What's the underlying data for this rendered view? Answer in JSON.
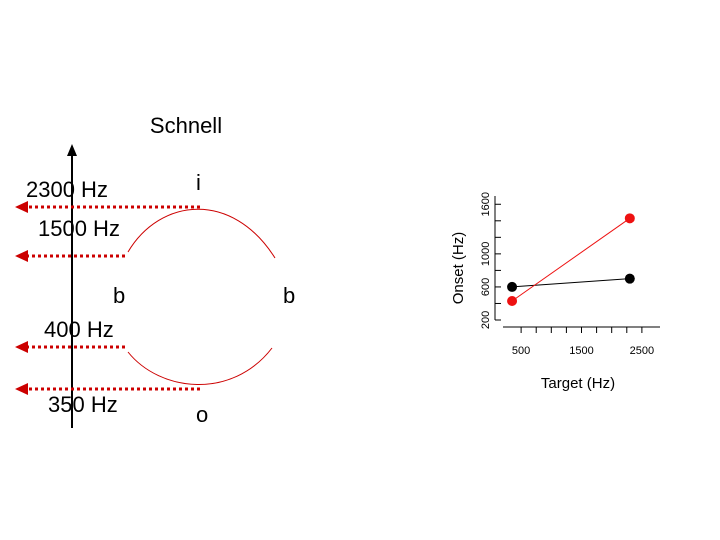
{
  "title": "Schnell",
  "diagram": {
    "labels": {
      "f2300": "2300 Hz",
      "f1500": "1500 Hz",
      "f400": "400 Hz",
      "f350": "350 Hz",
      "b_left": "b",
      "b_right": "b",
      "i": "i",
      "o": "o"
    },
    "colors": {
      "arrow": "#cc0000",
      "curve": "#cc0000",
      "axis": "#000000"
    }
  },
  "chart_data": {
    "type": "scatter",
    "xlabel": "Target (Hz)",
    "ylabel": "Onset (Hz)",
    "xticks": [
      500,
      1500,
      2500
    ],
    "yticks": [
      200,
      600,
      1000,
      1600
    ],
    "xlim": [
      200,
      2800
    ],
    "ylim": [
      200,
      1700
    ],
    "series": [
      {
        "color": "#000000",
        "points": [
          [
            350,
            600
          ],
          [
            2300,
            700
          ]
        ]
      },
      {
        "color": "#ee1111",
        "points": [
          [
            350,
            430
          ],
          [
            2300,
            1430
          ]
        ]
      }
    ]
  }
}
